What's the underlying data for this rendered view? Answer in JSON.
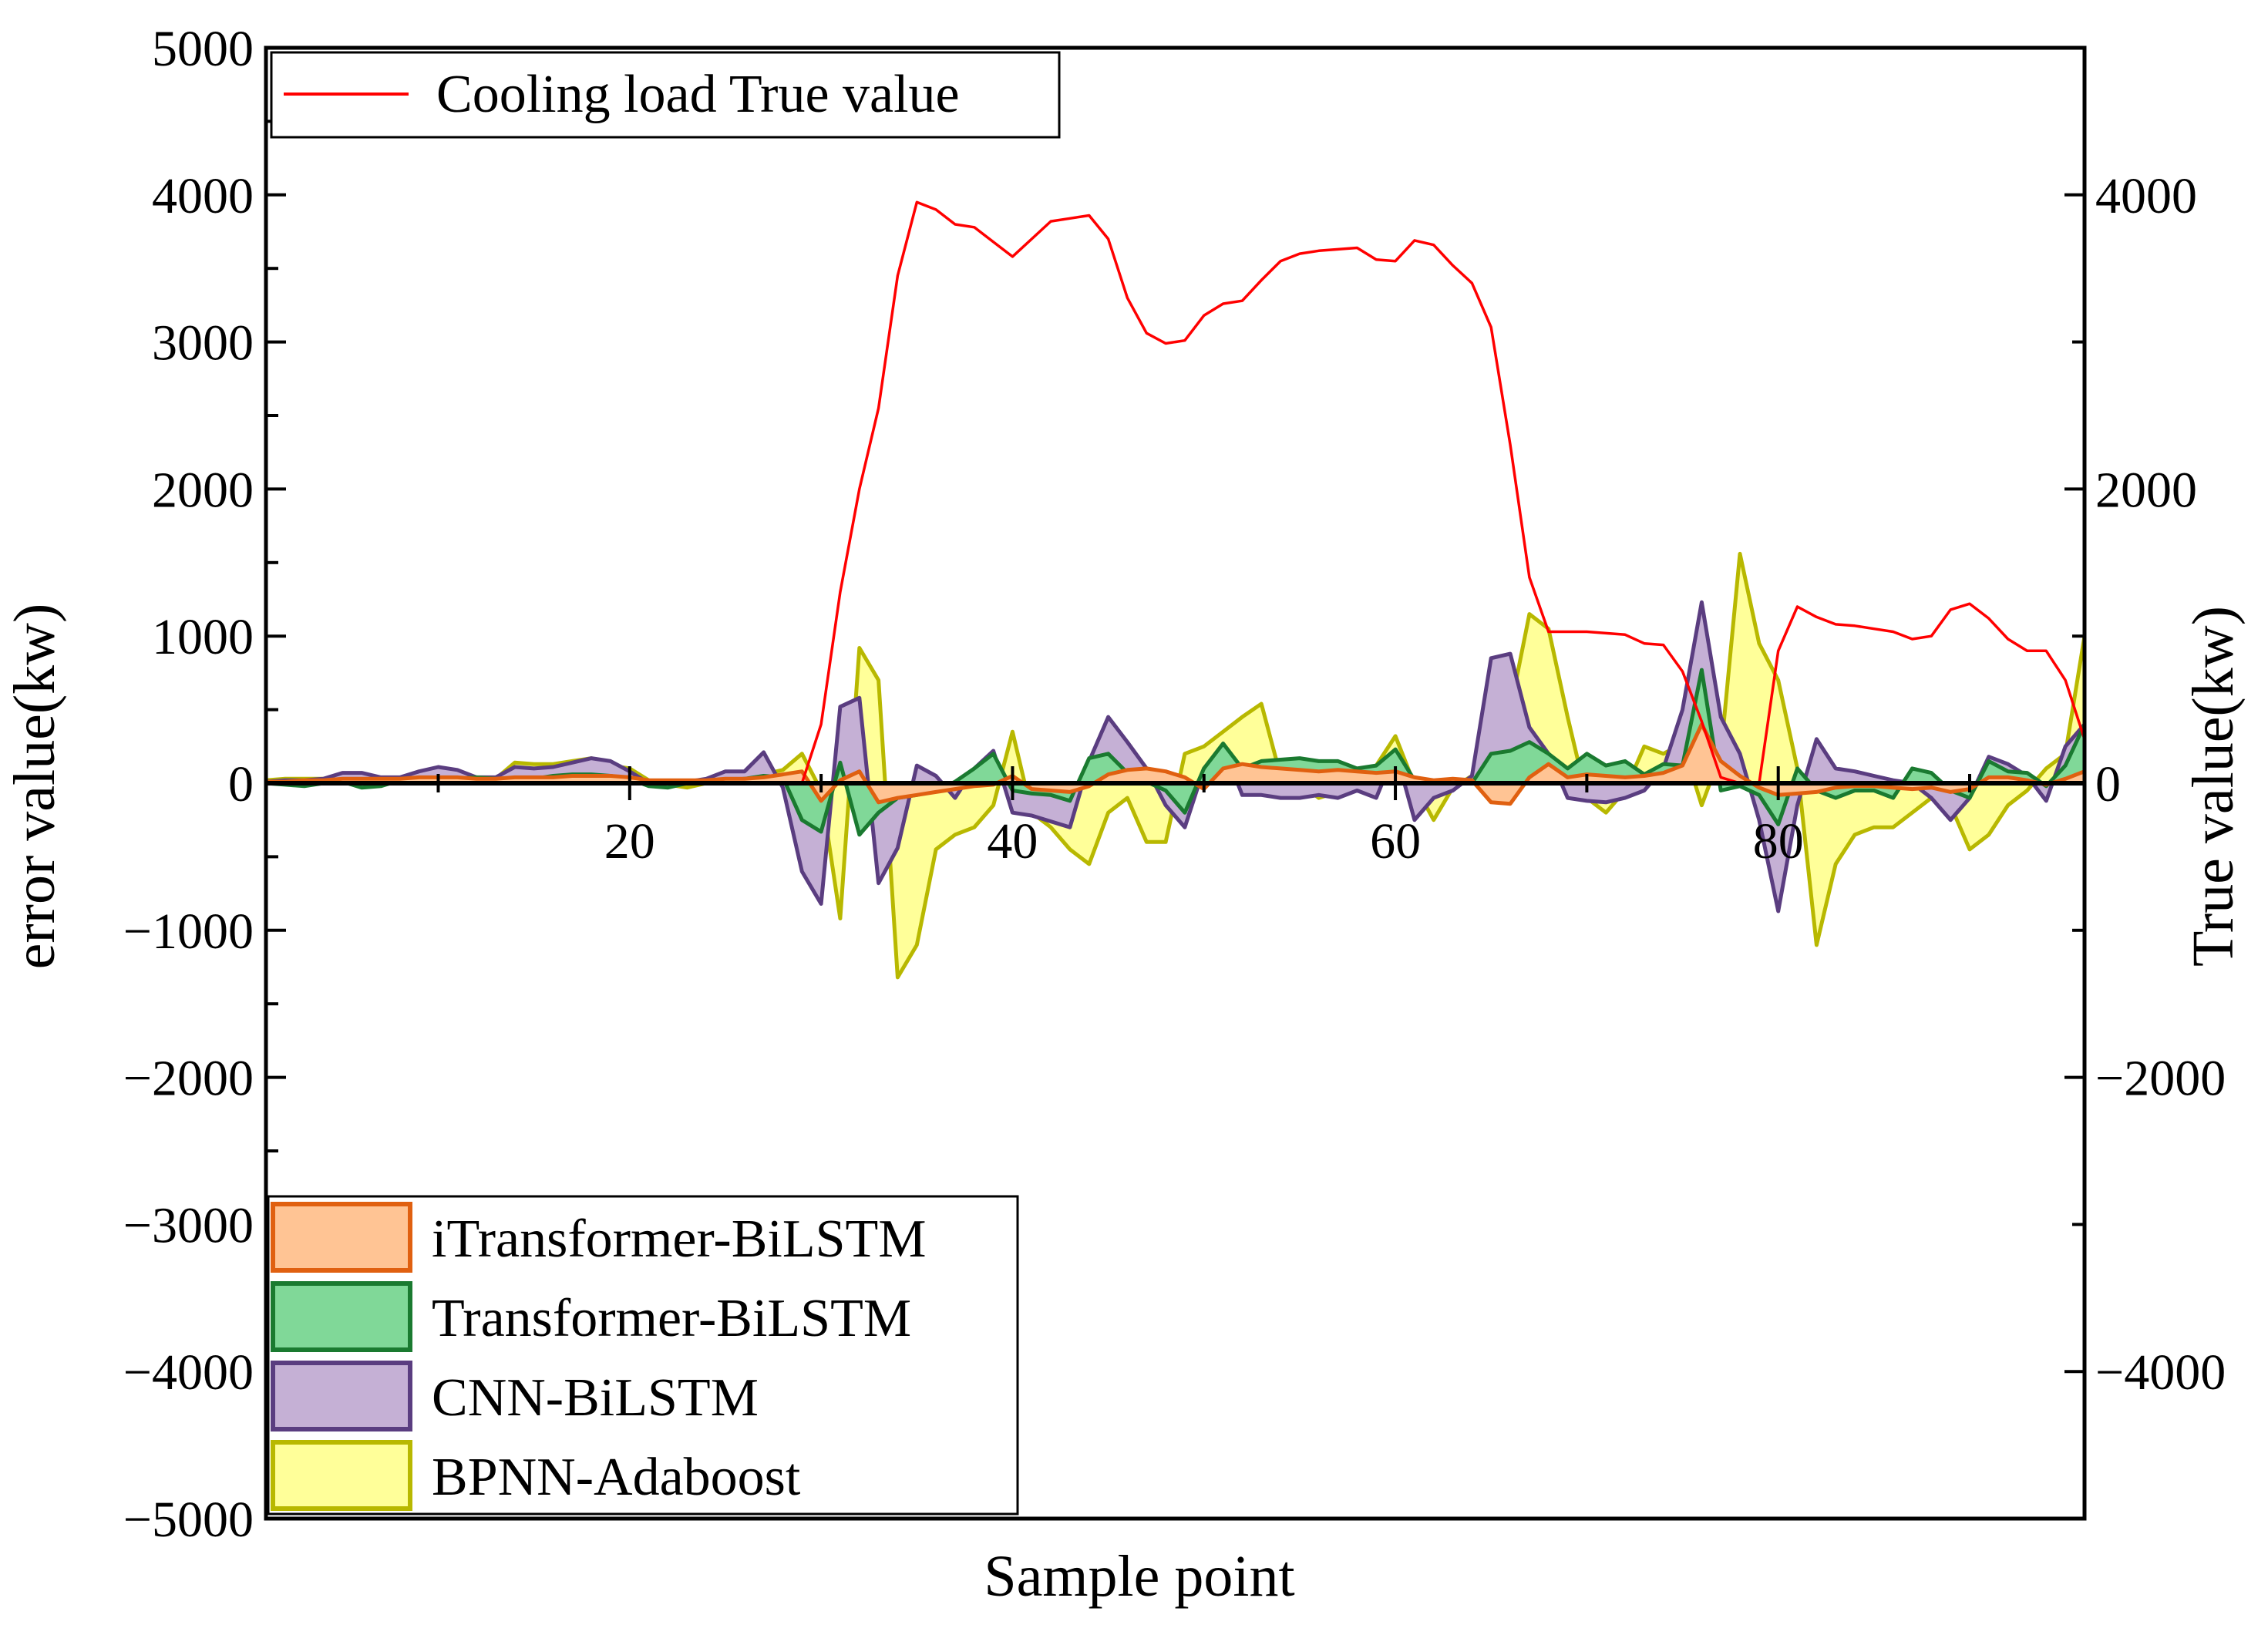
{
  "chart_data": {
    "type": "area",
    "xlabel": "Sample point",
    "ylabel_left": "error value(kw)",
    "ylabel_right": "True value(kw)",
    "xlim": [
      1,
      96
    ],
    "ylim_left": [
      -5000,
      5000
    ],
    "ylim_right": [
      -5000,
      5000
    ],
    "x_ticks": [
      20,
      40,
      60,
      80
    ],
    "x_tick_labels": [
      "20",
      "40",
      "60",
      "80"
    ],
    "y_left_ticks": [
      5000,
      4000,
      3000,
      2000,
      1000,
      0,
      -1000,
      -2000,
      -3000,
      -4000,
      -5000
    ],
    "y_left_tick_labels": [
      "5000",
      "4000",
      "3000",
      "2000",
      "1000",
      "0",
      "−1000",
      "−2000",
      "−3000",
      "−4000",
      "−5000"
    ],
    "y_right_ticks": [
      4000,
      2000,
      0,
      -2000,
      -4000
    ],
    "y_right_tick_labels": [
      "4000",
      "2000",
      "0",
      "−2000",
      "−4000"
    ],
    "legend_top": {
      "position": "top-left",
      "entries": [
        "Cooling load True value"
      ]
    },
    "legend_bottom": {
      "position": "bottom-left",
      "entries": [
        "iTransformer-BiLSTM",
        "Transformer-BiLSTM",
        "CNN-BiLSTM",
        "BPNN-Adaboost"
      ]
    },
    "true_value": {
      "name": "Cooling load True value",
      "color": "#ff0000",
      "x": [
        1,
        2,
        3,
        4,
        5,
        6,
        7,
        8,
        9,
        10,
        11,
        12,
        13,
        14,
        15,
        16,
        17,
        18,
        19,
        20,
        21,
        22,
        23,
        24,
        25,
        26,
        27,
        28,
        29,
        30,
        31,
        32,
        33,
        34,
        35,
        36,
        37,
        38,
        39,
        40,
        41,
        42,
        43,
        44,
        45,
        46,
        47,
        48,
        49,
        50,
        51,
        52,
        53,
        54,
        55,
        56,
        57,
        58,
        59,
        60,
        61,
        62,
        63,
        64,
        65,
        66,
        67,
        68,
        69,
        70,
        71,
        72,
        73,
        74,
        75,
        76,
        77,
        78,
        79,
        80,
        81,
        82,
        83,
        84,
        85,
        86,
        87,
        88,
        89,
        90,
        91,
        92,
        93,
        94,
        95,
        96
      ],
      "values": [
        0,
        0,
        0,
        0,
        0,
        0,
        0,
        0,
        0,
        0,
        0,
        0,
        0,
        0,
        0,
        0,
        0,
        0,
        0,
        0,
        0,
        0,
        0,
        0,
        0,
        0,
        0,
        0,
        0,
        400,
        1300,
        2000,
        2550,
        3450,
        3950,
        3900,
        3800,
        3780,
        3680,
        3580,
        3700,
        3820,
        3840,
        3860,
        3700,
        3300,
        3060,
        2990,
        3010,
        3180,
        3260,
        3280,
        3420,
        3550,
        3600,
        3620,
        3630,
        3640,
        3560,
        3550,
        3690,
        3660,
        3520,
        3400,
        3100,
        2300,
        1400,
        1030,
        1030,
        1030,
        1020,
        1010,
        950,
        940,
        760,
        420,
        40,
        0,
        0,
        900,
        1200,
        1130,
        1080,
        1070,
        1050,
        1030,
        980,
        1000,
        1180,
        1220,
        1120,
        980,
        900,
        900,
        700,
        300
      ]
    },
    "series": [
      {
        "name": "BPNN-Adaboost",
        "fill": "#ffff99",
        "stroke": "#b8b800",
        "x": [
          1,
          2,
          3,
          4,
          5,
          6,
          7,
          8,
          9,
          10,
          11,
          12,
          13,
          14,
          15,
          16,
          17,
          18,
          19,
          20,
          21,
          22,
          23,
          24,
          25,
          26,
          27,
          28,
          29,
          30,
          31,
          32,
          33,
          34,
          35,
          36,
          37,
          38,
          39,
          40,
          41,
          42,
          43,
          44,
          45,
          46,
          47,
          48,
          49,
          50,
          51,
          52,
          53,
          54,
          55,
          56,
          57,
          58,
          59,
          60,
          61,
          62,
          63,
          64,
          65,
          66,
          67,
          68,
          69,
          70,
          71,
          72,
          73,
          74,
          75,
          76,
          77,
          78,
          79,
          80,
          81,
          82,
          83,
          84,
          85,
          86,
          87,
          88,
          89,
          90,
          91,
          92,
          93,
          94,
          95,
          96
        ],
        "values": [
          20,
          30,
          30,
          30,
          60,
          60,
          30,
          30,
          80,
          60,
          50,
          30,
          30,
          140,
          130,
          130,
          150,
          170,
          120,
          100,
          20,
          -10,
          -30,
          0,
          30,
          60,
          60,
          90,
          200,
          -50,
          -920,
          920,
          700,
          -1320,
          -1100,
          -450,
          -350,
          -300,
          -150,
          350,
          -200,
          -300,
          -450,
          -550,
          -200,
          -100,
          -400,
          -400,
          200,
          250,
          350,
          450,
          540,
          50,
          0,
          -100,
          -60,
          -50,
          120,
          320,
          -10,
          -250,
          -30,
          50,
          0,
          500,
          1150,
          1050,
          450,
          -100,
          -200,
          -50,
          250,
          200,
          270,
          -150,
          200,
          1560,
          950,
          700,
          100,
          -1100,
          -550,
          -350,
          -300,
          -300,
          -200,
          -100,
          -150,
          -450,
          -350,
          -150,
          -50,
          100,
          200,
          1000
        ]
      },
      {
        "name": "CNN-BiLSTM",
        "fill": "#c5b0d5",
        "stroke": "#5a3d80",
        "x": [
          1,
          2,
          3,
          4,
          5,
          6,
          7,
          8,
          9,
          10,
          11,
          12,
          13,
          14,
          15,
          16,
          17,
          18,
          19,
          20,
          21,
          22,
          23,
          24,
          25,
          26,
          27,
          28,
          29,
          30,
          31,
          32,
          33,
          34,
          35,
          36,
          37,
          38,
          39,
          40,
          41,
          42,
          43,
          44,
          45,
          46,
          47,
          48,
          49,
          50,
          51,
          52,
          53,
          54,
          55,
          56,
          57,
          58,
          59,
          60,
          61,
          62,
          63,
          64,
          65,
          66,
          67,
          68,
          69,
          70,
          71,
          72,
          73,
          74,
          75,
          76,
          77,
          78,
          79,
          80,
          81,
          82,
          83,
          84,
          85,
          86,
          87,
          88,
          89,
          90,
          91,
          92,
          93,
          94,
          95,
          96
        ],
        "values": [
          10,
          20,
          20,
          30,
          70,
          70,
          40,
          40,
          80,
          110,
          90,
          40,
          40,
          110,
          100,
          110,
          140,
          170,
          150,
          80,
          0,
          0,
          10,
          30,
          80,
          80,
          210,
          -30,
          -600,
          -820,
          520,
          580,
          -680,
          -440,
          120,
          50,
          -100,
          100,
          220,
          -200,
          -220,
          -260,
          -300,
          150,
          450,
          280,
          100,
          -150,
          -300,
          100,
          250,
          -80,
          -80,
          -100,
          -100,
          -80,
          -100,
          -50,
          -100,
          220,
          -250,
          -100,
          -50,
          50,
          850,
          880,
          380,
          200,
          -100,
          -120,
          -130,
          -100,
          -50,
          100,
          500,
          1230,
          450,
          200,
          -250,
          -870,
          -150,
          300,
          100,
          80,
          50,
          20,
          0,
          -100,
          -250,
          -100,
          180,
          130,
          50,
          -120,
          250,
          400
        ]
      },
      {
        "name": "Transformer-BiLSTM",
        "fill": "#80d898",
        "stroke": "#1a7a30",
        "x": [
          1,
          2,
          3,
          4,
          5,
          6,
          7,
          8,
          9,
          10,
          11,
          12,
          13,
          14,
          15,
          16,
          17,
          18,
          19,
          20,
          21,
          22,
          23,
          24,
          25,
          26,
          27,
          28,
          29,
          30,
          31,
          32,
          33,
          34,
          35,
          36,
          37,
          38,
          39,
          40,
          41,
          42,
          43,
          44,
          45,
          46,
          47,
          48,
          49,
          50,
          51,
          52,
          53,
          54,
          55,
          56,
          57,
          58,
          59,
          60,
          61,
          62,
          63,
          64,
          65,
          66,
          67,
          68,
          69,
          70,
          71,
          72,
          73,
          74,
          75,
          76,
          77,
          78,
          79,
          80,
          81,
          82,
          83,
          84,
          85,
          86,
          87,
          88,
          89,
          90,
          91,
          92,
          93,
          94,
          95,
          96
        ],
        "values": [
          0,
          -10,
          -20,
          0,
          10,
          -30,
          -20,
          20,
          30,
          40,
          30,
          40,
          30,
          20,
          30,
          50,
          60,
          60,
          50,
          30,
          -20,
          -30,
          0,
          10,
          20,
          30,
          50,
          40,
          -250,
          -330,
          140,
          -350,
          -200,
          -100,
          -80,
          -50,
          10,
          100,
          200,
          -50,
          -70,
          -80,
          -120,
          170,
          200,
          70,
          10,
          -50,
          -200,
          100,
          270,
          100,
          150,
          160,
          170,
          150,
          150,
          100,
          120,
          230,
          20,
          0,
          20,
          0,
          200,
          220,
          280,
          200,
          100,
          200,
          120,
          150,
          60,
          130,
          120,
          770,
          -50,
          -20,
          -80,
          -280,
          100,
          -50,
          -100,
          -50,
          -50,
          -100,
          100,
          70,
          -50,
          -100,
          150,
          80,
          70,
          -20,
          120,
          400
        ]
      },
      {
        "name": "iTransformer-BiLSTM",
        "fill": "#ffc494",
        "stroke": "#e06010",
        "x": [
          1,
          2,
          3,
          4,
          5,
          6,
          7,
          8,
          9,
          10,
          11,
          12,
          13,
          14,
          15,
          16,
          17,
          18,
          19,
          20,
          21,
          22,
          23,
          24,
          25,
          26,
          27,
          28,
          29,
          30,
          31,
          32,
          33,
          34,
          35,
          36,
          37,
          38,
          39,
          40,
          41,
          42,
          43,
          44,
          45,
          46,
          47,
          48,
          49,
          50,
          51,
          52,
          53,
          54,
          55,
          56,
          57,
          58,
          59,
          60,
          61,
          62,
          63,
          64,
          65,
          66,
          67,
          68,
          69,
          70,
          71,
          72,
          73,
          74,
          75,
          76,
          77,
          78,
          79,
          80,
          81,
          82,
          83,
          84,
          85,
          86,
          87,
          88,
          89,
          90,
          91,
          92,
          93,
          94,
          95,
          96
        ],
        "values": [
          10,
          10,
          20,
          20,
          30,
          30,
          30,
          30,
          40,
          40,
          40,
          30,
          30,
          40,
          40,
          40,
          50,
          50,
          50,
          40,
          20,
          20,
          20,
          20,
          30,
          30,
          40,
          60,
          80,
          -120,
          20,
          80,
          -130,
          -100,
          -80,
          -60,
          -40,
          -20,
          -10,
          50,
          -40,
          -50,
          -60,
          -20,
          60,
          90,
          100,
          80,
          40,
          -40,
          100,
          130,
          110,
          100,
          90,
          80,
          90,
          80,
          70,
          80,
          40,
          20,
          30,
          20,
          -130,
          -140,
          40,
          130,
          40,
          60,
          50,
          40,
          50,
          70,
          120,
          400,
          150,
          50,
          -30,
          -80,
          -70,
          -60,
          -30,
          -20,
          -20,
          -30,
          -40,
          -30,
          -60,
          -40,
          40,
          40,
          20,
          -10,
          30,
          80
        ]
      }
    ]
  }
}
